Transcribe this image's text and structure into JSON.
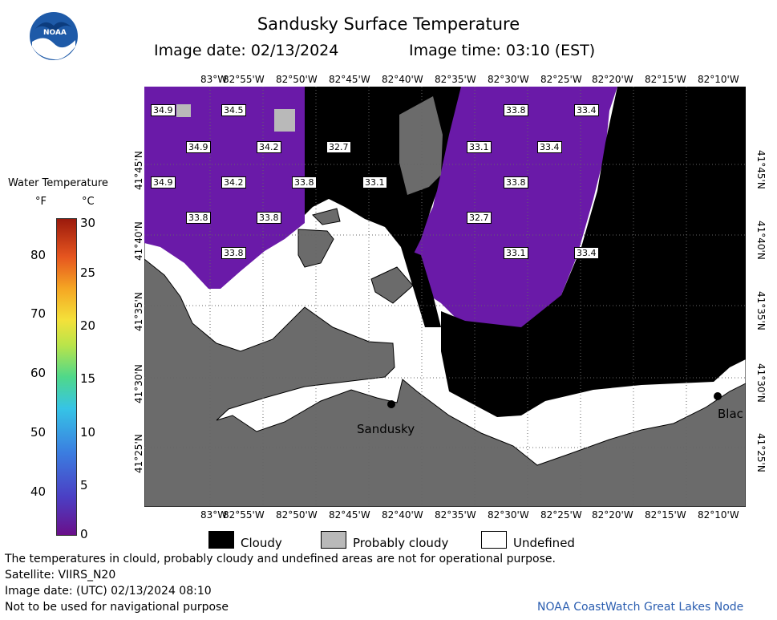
{
  "header": {
    "title": "Sandusky Surface Temperature",
    "image_date": "Image date: 02/13/2024",
    "image_time": "Image time: 03:10 (EST)",
    "logo_text": "NOAA"
  },
  "scale": {
    "title": "Water Temperature",
    "f_label": "°F",
    "c_label": "°C",
    "f_ticks": [
      "80",
      "70",
      "60",
      "50",
      "40"
    ],
    "c_ticks": [
      "30",
      "25",
      "20",
      "15",
      "10",
      "5",
      "0"
    ]
  },
  "axes": {
    "lon_labels": [
      "83°W",
      "82°55'W",
      "82°50'W",
      "82°45'W",
      "82°40'W",
      "82°35'W",
      "82°30'W",
      "82°25'W",
      "82°20'W",
      "82°15'W",
      "82°10'W"
    ],
    "lat_labels": [
      "41°45'N",
      "41°40'N",
      "41°35'N",
      "41°30'N",
      "41°25'N"
    ]
  },
  "temps": [
    {
      "v": "34.9"
    },
    {
      "v": "34.5"
    },
    {
      "v": "33.8"
    },
    {
      "v": "33.4"
    },
    {
      "v": "34.9"
    },
    {
      "v": "34.2"
    },
    {
      "v": "32.7"
    },
    {
      "v": "33.1"
    },
    {
      "v": "33.4"
    },
    {
      "v": "34.9"
    },
    {
      "v": "34.2"
    },
    {
      "v": "33.8"
    },
    {
      "v": "33.1"
    },
    {
      "v": "33.8"
    },
    {
      "v": "33.8"
    },
    {
      "v": "33.8"
    },
    {
      "v": "32.7"
    },
    {
      "v": "33.8"
    },
    {
      "v": "33.1"
    },
    {
      "v": "33.4"
    }
  ],
  "places": {
    "city1": "Sandusky",
    "city2": "Blac"
  },
  "legend": {
    "cloudy": "Cloudy",
    "probably_cloudy": "Probably cloudy",
    "undefined": "Undefined"
  },
  "footer": {
    "line1": "The temperatures in clould, probably cloudy and undefined areas are not for operational purpose.",
    "line2": "Satellite: VIIRS_N20",
    "line3": "Image date: (UTC) 02/13/2024  08:10",
    "line4": "Not to be used for navigational purpose",
    "credit": "NOAA CoastWatch Great Lakes Node"
  },
  "colors": {
    "land": "#6b6b6b",
    "cloud": "#000000",
    "water": "#6a1aa8",
    "probably_cloudy": "#b9b9b9",
    "credit": "#2a5db0"
  }
}
